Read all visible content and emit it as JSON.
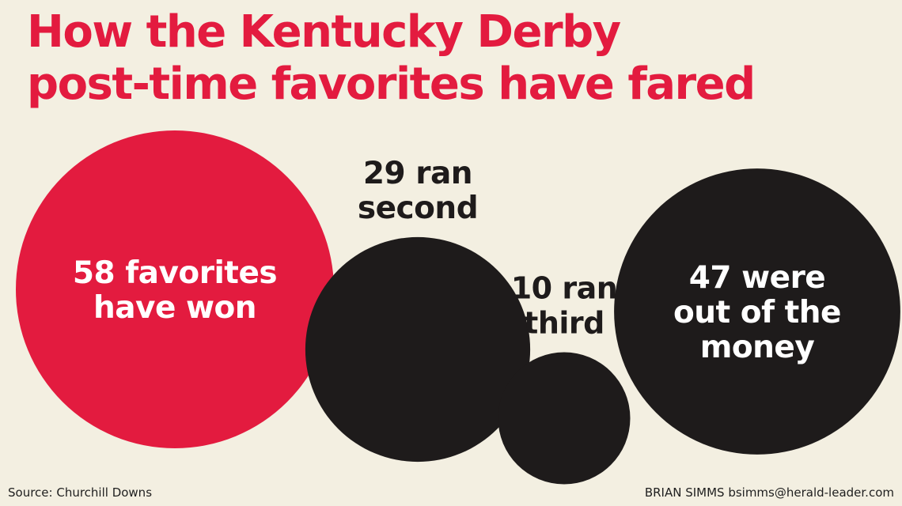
{
  "title_lines": [
    "How the Kentucky Derby",
    "post-time favorites have fared"
  ],
  "chart_data": {
    "type": "bubble",
    "unit": "post-time favorites",
    "categories": [
      "have won",
      "ran second",
      "ran third",
      "out of the money"
    ],
    "values": [
      58,
      29,
      10,
      47
    ],
    "labels": [
      [
        "58 favorites",
        "have won"
      ],
      [
        "29 ran",
        "second"
      ],
      [
        "10 ran",
        "third"
      ],
      [
        "47 were",
        "out of the",
        "money"
      ]
    ],
    "colors": [
      "#e31b3f",
      "#1e1b1b",
      "#1e1b1b",
      "#1e1b1b"
    ],
    "label_colors": [
      "#ffffff",
      "#1e1b1b",
      "#1e1b1b",
      "#ffffff"
    ],
    "legend": "none",
    "grid": false
  },
  "footer": {
    "source": "Source: Churchill Downs",
    "credit": "BRIAN SIMMS bsimms@herald-leader.com"
  }
}
